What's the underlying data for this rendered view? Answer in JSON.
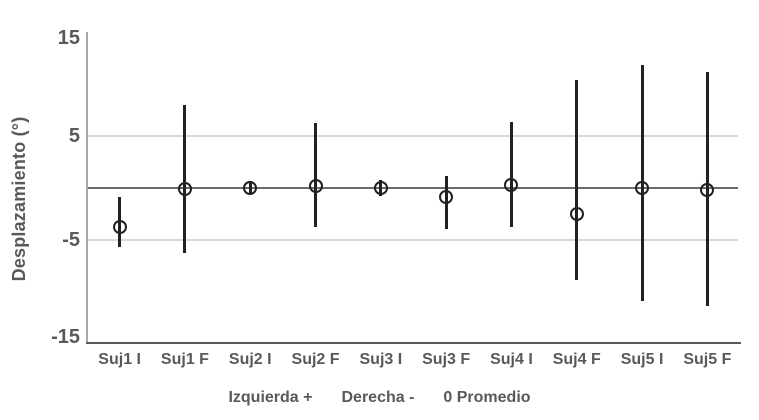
{
  "chart_data": {
    "type": "scatter",
    "subtype": "mean-with-error-bars",
    "title": "",
    "xlabel": "",
    "ylabel": "Desplazamiento (°)",
    "categories": [
      "Suj1 I",
      "Suj1 F",
      "Suj2 I",
      "Suj2 F",
      "Suj3 I",
      "Suj3 F",
      "Suj4 I",
      "Suj4 F",
      "Suj5 I",
      "Suj5 F"
    ],
    "series": [
      {
        "name": "Promedio",
        "marker": "open-circle",
        "means": [
          -3.8,
          -0.1,
          0.0,
          0.2,
          0.0,
          -0.9,
          0.3,
          -2.5,
          0.0,
          -0.2
        ],
        "error_high": [
          -0.9,
          8.0,
          0.7,
          6.3,
          0.8,
          1.2,
          6.4,
          10.5,
          11.9,
          11.2
        ],
        "error_low": [
          -5.7,
          -6.3,
          -0.6,
          -3.8,
          -0.8,
          -4.0,
          -3.8,
          -8.9,
          -10.9,
          -11.4
        ]
      }
    ],
    "ylim": [
      -15,
      15
    ],
    "yticks": [
      15,
      5,
      -5,
      -15
    ],
    "gridline_values": [
      5,
      -5
    ],
    "zero_line_value": 0,
    "grid": true,
    "legend_position": "none"
  },
  "footer": {
    "left_label": "Izquierda +",
    "right_label": "Derecha -",
    "zero_label": "0 Promedio"
  },
  "colors": {
    "background": "#ffffff",
    "text": "#595959",
    "gridline": "#d9d9d9",
    "zero_line": "#6b6b6b",
    "y_axis_line": "#a6a6a6",
    "x_axis_line": "#595959",
    "error_bar": "#212121",
    "marker_stroke": "#212121"
  }
}
